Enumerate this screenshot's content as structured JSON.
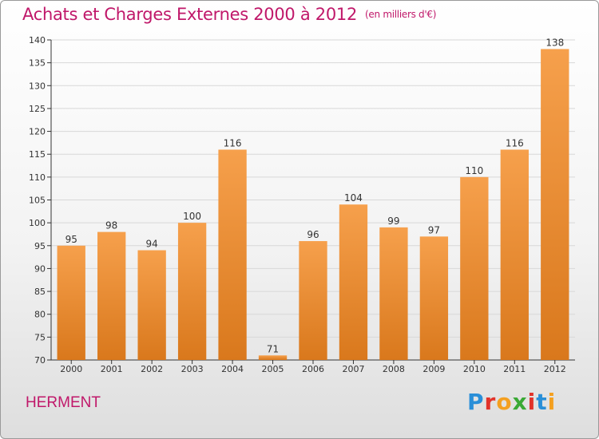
{
  "header": {
    "title": "Achats et Charges Externes 2000 à 2012",
    "unit": "(en milliers d'€)"
  },
  "footer": {
    "commune": "HERMENT",
    "logo_text": "Proxiti"
  },
  "colors": {
    "title": "#c0186a",
    "bar_top": "#f6a04c",
    "bar_bottom": "#d9781c",
    "axis": "#333333",
    "grid": "#d8d8d8"
  },
  "chart_data": {
    "type": "bar",
    "title": "Achats et Charges Externes 2000 à 2012",
    "subtitle": "(en milliers d'€)",
    "xlabel": "",
    "ylabel": "",
    "categories": [
      "2000",
      "2001",
      "2002",
      "2003",
      "2004",
      "2005",
      "2006",
      "2007",
      "2008",
      "2009",
      "2010",
      "2011",
      "2012"
    ],
    "values": [
      95,
      98,
      94,
      100,
      116,
      71,
      96,
      104,
      99,
      97,
      110,
      116,
      138
    ],
    "ylim": [
      70,
      140
    ],
    "yticks": [
      "70",
      "75",
      "80",
      "85",
      "90",
      "95",
      "100",
      "105",
      "110",
      "115",
      "120",
      "125",
      "130",
      "135",
      "140"
    ],
    "grid": true,
    "data_labels": true
  }
}
